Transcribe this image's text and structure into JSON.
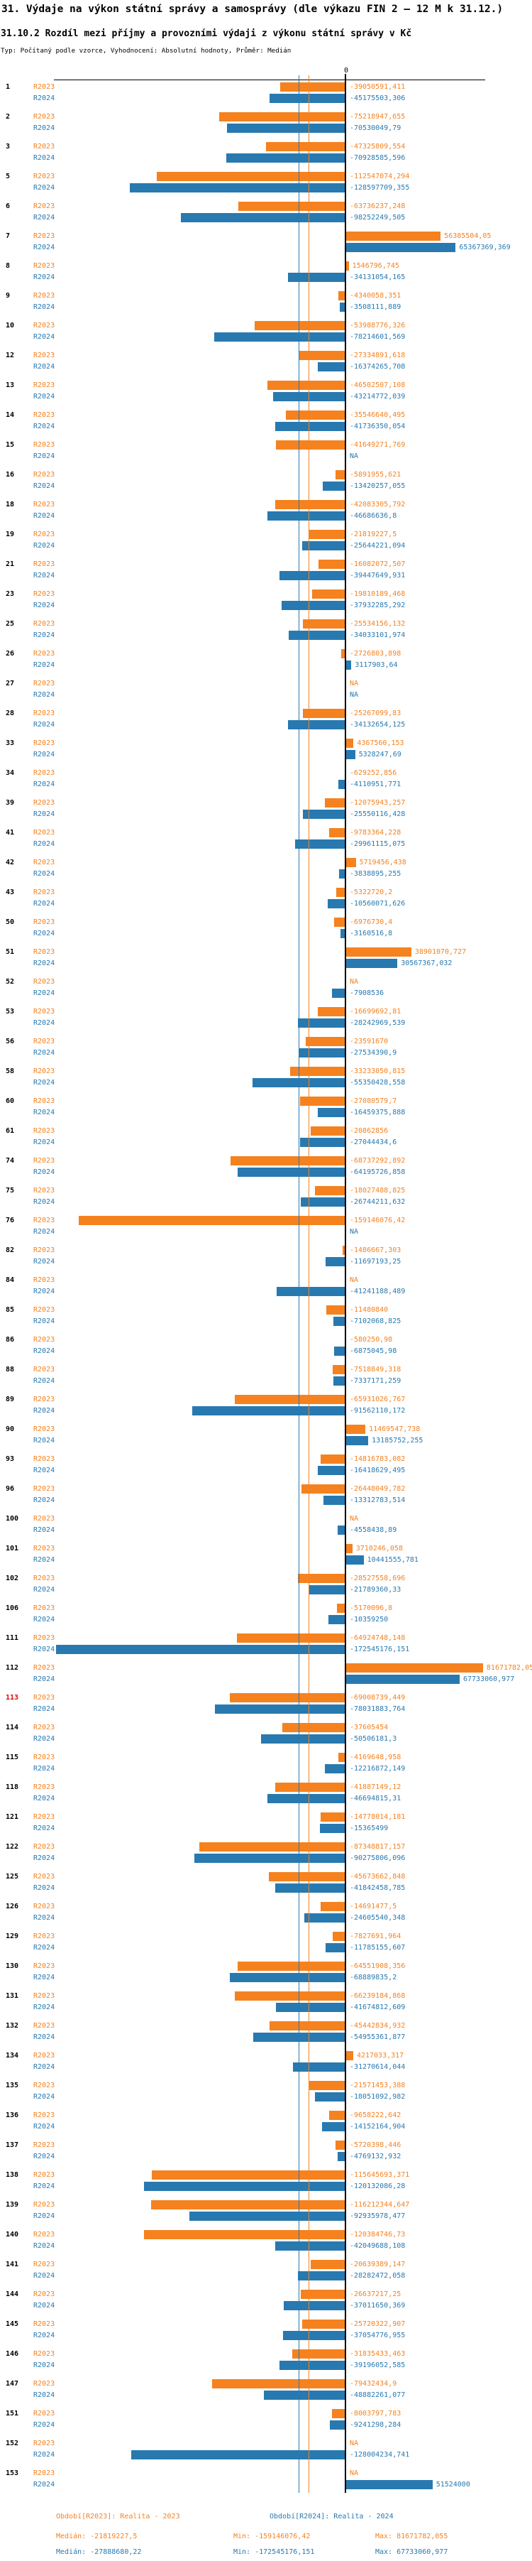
{
  "page": {
    "title": "31. Výdaje na výkon státní správy a samosprávy (dle výkazu FIN 2 – 12 M k 31.12.)",
    "subtitle": "31.10.2 Rozdíl mezi příjmy a provozními výdaji z výkonu státní správy v Kč",
    "meta": "Typ: Počítaný podle vzorce, Vyhodnocení: Absolutní hodnoty, Průměr: Medián"
  },
  "axis": {
    "zero_label": "0"
  },
  "legend": {
    "r2023": {
      "label": "Období[R2023]: Realita - 2023",
      "median": "Medián: -21819227,5",
      "min": "Min: -159146076,42",
      "max": "Max: 81671782,055"
    },
    "r2024": {
      "label": "Období[R2024]: Realita - 2024",
      "median": "Medián: -27888680,22",
      "min": "Min: -172545176,151",
      "max": "Max: 67733060,977"
    }
  },
  "chart_data": {
    "type": "bar",
    "orientation": "horizontal",
    "value_unit": "Kč",
    "na_label": "NA",
    "decimal_separator": ",",
    "grid": false,
    "highlighted_category": "113",
    "row_number_color": "#000000",
    "highlighted_color": "#e00000",
    "xlim": [
      -174000000,
      83000000
    ],
    "medians": {
      "R2023": -21819227.5,
      "R2024": -27888680.22
    },
    "min": {
      "R2023": -159146076.42,
      "R2024": -172545176.151
    },
    "max": {
      "R2023": 81671782.055,
      "R2024": 67733060.977
    },
    "categories": [
      "1",
      "2",
      "3",
      "5",
      "6",
      "7",
      "8",
      "9",
      "10",
      "12",
      "13",
      "14",
      "15",
      "16",
      "18",
      "19",
      "21",
      "23",
      "25",
      "26",
      "27",
      "28",
      "33",
      "34",
      "39",
      "41",
      "42",
      "43",
      "50",
      "51",
      "52",
      "53",
      "56",
      "58",
      "60",
      "61",
      "74",
      "75",
      "76",
      "82",
      "84",
      "85",
      "86",
      "88",
      "89",
      "90",
      "93",
      "96",
      "100",
      "101",
      "102",
      "106",
      "111",
      "112",
      "113",
      "114",
      "115",
      "118",
      "121",
      "122",
      "125",
      "126",
      "129",
      "130",
      "131",
      "132",
      "134",
      "135",
      "136",
      "137",
      "138",
      "139",
      "140",
      "141",
      "144",
      "145",
      "146",
      "147",
      "151",
      "152",
      "153"
    ],
    "series": [
      {
        "name": "R2023",
        "color": "#f5821f",
        "values": [
          -39050591.411,
          -75218947.655,
          -47325809.554,
          -112547074.294,
          -63736237.248,
          56385504.05,
          1546796.745,
          -4340058.351,
          -53988776.326,
          -27334891.618,
          -46502507.108,
          -35546640.495,
          -41649271.769,
          -5891955.621,
          -42083305.792,
          -21819227.5,
          -16082072.507,
          -19810189.468,
          -25534156.132,
          -2726803.898,
          null,
          -25267099.83,
          4367560.153,
          -629252.856,
          -12075943.257,
          -9783364.228,
          5719456.438,
          -5322720.2,
          -6976730.4,
          38901070.727,
          null,
          -16699692.81,
          -23591670,
          -33233050.815,
          -27080579.7,
          -20862856,
          -68737292.892,
          -18027488.825,
          -159146076.42,
          -1486667.303,
          null,
          -11480840,
          -580250.98,
          -7518849.318,
          -65931026.767,
          11469547.738,
          -14816783.082,
          -26448049.782,
          null,
          3710246.058,
          -28527558.696,
          -5170096.8,
          -64924748.148,
          81671782.055,
          -69008739.449,
          -37605454,
          -4169648.958,
          -41887149.12,
          -14778014.181,
          -87348817.157,
          -45673662.848,
          -14691477.5,
          -7827691.964,
          -64551908.356,
          -66239184.868,
          -45442834.932,
          4217033.317,
          -21571453.388,
          -9658222.642,
          -5720398.446,
          -115645693.371,
          -116212344.647,
          -120384746.73,
          -20639389.147,
          -26637217.25,
          -25720322.907,
          -31835433.463,
          -79432434.9,
          -8003797.783,
          null,
          null
        ]
      },
      {
        "name": "R2024",
        "color": "#2879b0",
        "values": [
          -45175503.306,
          -70530049.79,
          -70928585.596,
          -128597709.355,
          -98252249.505,
          65367369.369,
          -34131054.165,
          -3508111.889,
          -78214601.569,
          -16374265.708,
          -43214772.039,
          -41736350.054,
          null,
          -13420257.055,
          -46686636.8,
          -25644221.094,
          -39447649.931,
          -37932285.292,
          -34033101.974,
          3117903.64,
          null,
          -34132654.125,
          5328247.69,
          -4110951.771,
          -25550116.428,
          -29961115.075,
          -3838895.255,
          -10560071.626,
          -3160516.8,
          30567367.032,
          -7908536,
          -28242969.539,
          -27534390.9,
          -55350428.558,
          -16459375.888,
          -27044434.6,
          -64195726.858,
          -26744211.632,
          null,
          -11697193.25,
          -41241188.489,
          -7102068.825,
          -6875045.98,
          -7337171.259,
          -91562110.172,
          13185752.255,
          -16418629.495,
          -13312783.514,
          -4558438.89,
          10441555.781,
          -21789360.33,
          -10359250,
          -172545176.151,
          67733060.977,
          -78031883.764,
          -50506181.3,
          -12216872.149,
          -46694815.31,
          -15365499,
          -90275806.096,
          -41842458.785,
          -24605540.348,
          -11785155.607,
          -68889835.2,
          -41674812.609,
          -54955361.877,
          -31270614.044,
          -18051092.982,
          -14152164.904,
          -4769132.932,
          -120132086.28,
          -92935978.477,
          -42049688.108,
          -28282472.058,
          -37011650.369,
          -37054776.955,
          -39196052.585,
          -48882261.077,
          -9241298.284,
          -128004234.741,
          51524000
        ]
      }
    ]
  }
}
